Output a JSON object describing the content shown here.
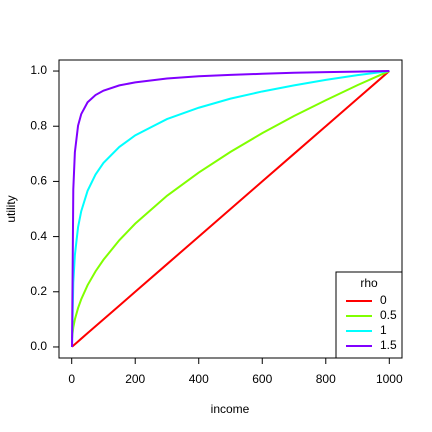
{
  "chart_data": {
    "type": "line",
    "x_label": "income",
    "y_label": "utility",
    "x": [
      1,
      5,
      10,
      20,
      30,
      50,
      75,
      100,
      150,
      200,
      300,
      400,
      500,
      600,
      700,
      800,
      900,
      1000
    ],
    "series": [
      {
        "name": "0",
        "color": "#ff0000",
        "values": [
          0.001,
          0.005,
          0.01,
          0.02,
          0.03,
          0.05,
          0.075,
          0.1,
          0.15,
          0.2,
          0.3,
          0.4,
          0.5,
          0.6,
          0.7,
          0.8,
          0.9,
          1.0
        ]
      },
      {
        "name": "0.5",
        "color": "#80ff00",
        "values": [
          0.032,
          0.071,
          0.1,
          0.141,
          0.173,
          0.224,
          0.274,
          0.316,
          0.387,
          0.447,
          0.548,
          0.632,
          0.707,
          0.775,
          0.837,
          0.894,
          0.949,
          1.0
        ]
      },
      {
        "name": "1",
        "color": "#00ffff",
        "values": [
          0,
          0.233,
          0.333,
          0.434,
          0.492,
          0.566,
          0.625,
          0.667,
          0.725,
          0.767,
          0.826,
          0.867,
          0.9,
          0.926,
          0.948,
          0.968,
          0.985,
          1.0
        ]
      },
      {
        "name": "1.5",
        "color": "#8000ff",
        "values": [
          0,
          0.571,
          0.706,
          0.802,
          0.844,
          0.887,
          0.913,
          0.929,
          0.948,
          0.959,
          0.973,
          0.981,
          0.986,
          0.99,
          0.994,
          0.996,
          0.998,
          1.0
        ]
      }
    ],
    "legend_title": "rho",
    "legend_position": "bottom-right",
    "xlim": [
      -40,
      1040
    ],
    "ylim": [
      -0.04,
      1.04
    ],
    "xticks": [
      0,
      200,
      400,
      600,
      800,
      1000
    ],
    "yticks": [
      {
        "value": 0,
        "label": "0.0"
      },
      {
        "value": 0.2,
        "label": "0.2"
      },
      {
        "value": 0.4,
        "label": "0.4"
      },
      {
        "value": 0.6,
        "label": "0.6"
      },
      {
        "value": 0.8,
        "label": "0.8"
      },
      {
        "value": 1,
        "label": "1.0"
      }
    ]
  }
}
